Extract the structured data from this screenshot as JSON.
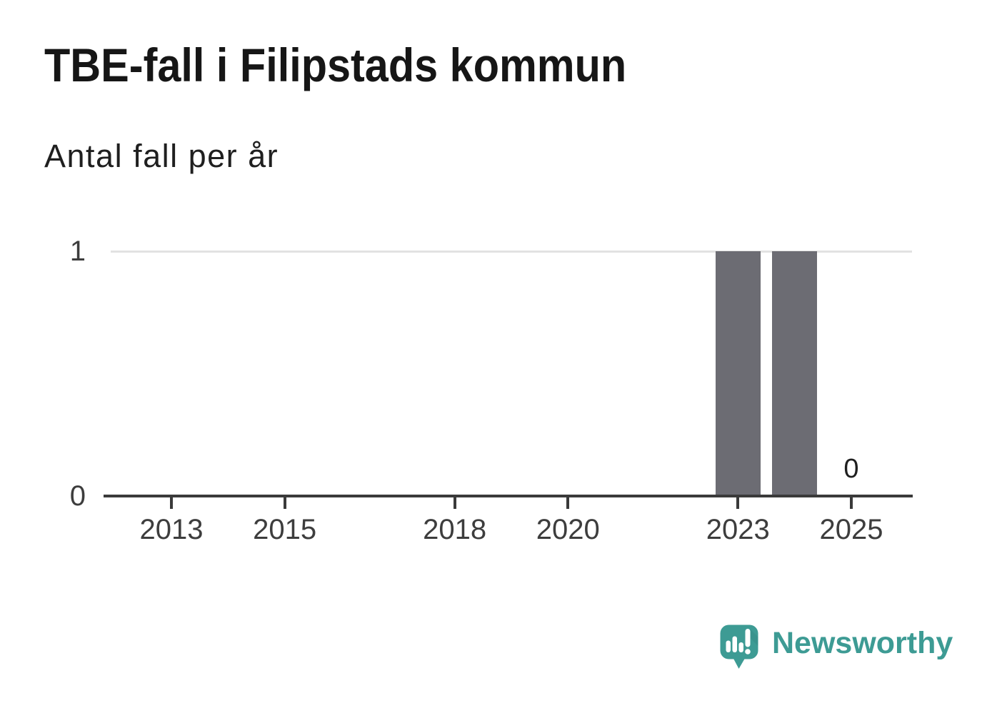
{
  "header": {
    "title": "TBE-fall i Filipstads kommun",
    "subtitle": "Antal fall per år"
  },
  "chart_data": {
    "type": "bar",
    "x": [
      2013,
      2014,
      2015,
      2016,
      2017,
      2018,
      2019,
      2020,
      2021,
      2022,
      2023,
      2024,
      2025
    ],
    "values": [
      0,
      0,
      0,
      0,
      0,
      0,
      0,
      0,
      0,
      0,
      1,
      1,
      0
    ],
    "title": "TBE-fall i Filipstads kommun",
    "subtitle_as_ylabel": "Antal fall per år",
    "xlabel": "",
    "ylabel": "",
    "ylim": [
      0,
      1
    ],
    "x_tick_labels": [
      "2013",
      "2015",
      "2018",
      "2020",
      "2023",
      "2025"
    ],
    "y_tick_labels": [
      "0",
      "1"
    ],
    "last_point_label": "0",
    "legend": "none",
    "grid": "horizontal gridline at y=1 only",
    "bar_color": "#6c6c73",
    "gridline_color": "#e2e2e2",
    "axis_color": "#3a3a3a"
  },
  "footer": {
    "brand": "Newsworthy",
    "brand_color": "#3d9b94",
    "logo_icon": "newsworthy-speech-bubble-bar-chart-icon"
  }
}
